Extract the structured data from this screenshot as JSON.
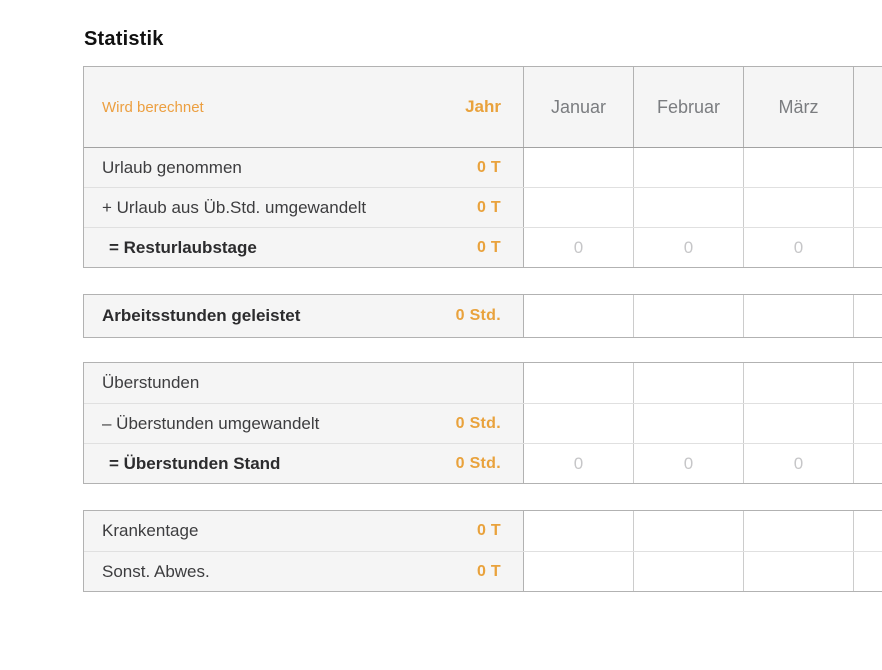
{
  "page": {
    "title": "Statistik"
  },
  "table_header": {
    "status_note": "Wird berechnet",
    "year_label": "Jahr",
    "months": [
      "Januar",
      "Februar",
      "März",
      ""
    ]
  },
  "colors": {
    "accent_orange": "#e9a23c",
    "muted_zero_gray": "#c6c6c8",
    "header_gray_text": "#7b7d80",
    "label_column_bg": "#f5f5f5"
  },
  "tables": [
    {
      "id": "urlaub",
      "has_header": true,
      "rows": [
        {
          "label": "Urlaub genommen",
          "year_value": "0 T",
          "emphasis": false,
          "indent": false,
          "months": [
            "",
            "",
            "",
            ""
          ]
        },
        {
          "label": "+ Urlaub aus Üb.Std. umgewandelt",
          "year_value": "0 T",
          "emphasis": false,
          "indent": false,
          "months": [
            "",
            "",
            "",
            ""
          ]
        },
        {
          "label": "= Resturlaubstage",
          "year_value": "0 T",
          "emphasis": true,
          "indent": true,
          "months": [
            "0",
            "0",
            "0",
            ""
          ]
        }
      ]
    },
    {
      "id": "arbeitsstunden",
      "has_header": false,
      "rows": [
        {
          "label": "Arbeitsstunden geleistet",
          "year_value": "0 Std.",
          "emphasis": true,
          "indent": false,
          "months": [
            "",
            "",
            "",
            ""
          ]
        }
      ]
    },
    {
      "id": "ueberstunden",
      "has_header": false,
      "rows": [
        {
          "label": "Überstunden",
          "year_value": "",
          "emphasis": false,
          "indent": false,
          "months": [
            "",
            "",
            "",
            ""
          ]
        },
        {
          "label": "– Überstunden umgewandelt",
          "year_value": "0 Std.",
          "emphasis": false,
          "indent": false,
          "months": [
            "",
            "",
            "",
            ""
          ]
        },
        {
          "label": "= Überstunden Stand",
          "year_value": "0 Std.",
          "emphasis": true,
          "indent": true,
          "months": [
            "0",
            "0",
            "0",
            ""
          ]
        }
      ]
    },
    {
      "id": "abwesenheit",
      "has_header": false,
      "rows": [
        {
          "label": "Krankentage",
          "year_value": "0 T",
          "emphasis": false,
          "indent": false,
          "months": [
            "",
            "",
            "",
            ""
          ]
        },
        {
          "label": "Sonst. Abwes.",
          "year_value": "0 T",
          "emphasis": false,
          "indent": false,
          "months": [
            "",
            "",
            "",
            ""
          ]
        }
      ]
    }
  ]
}
